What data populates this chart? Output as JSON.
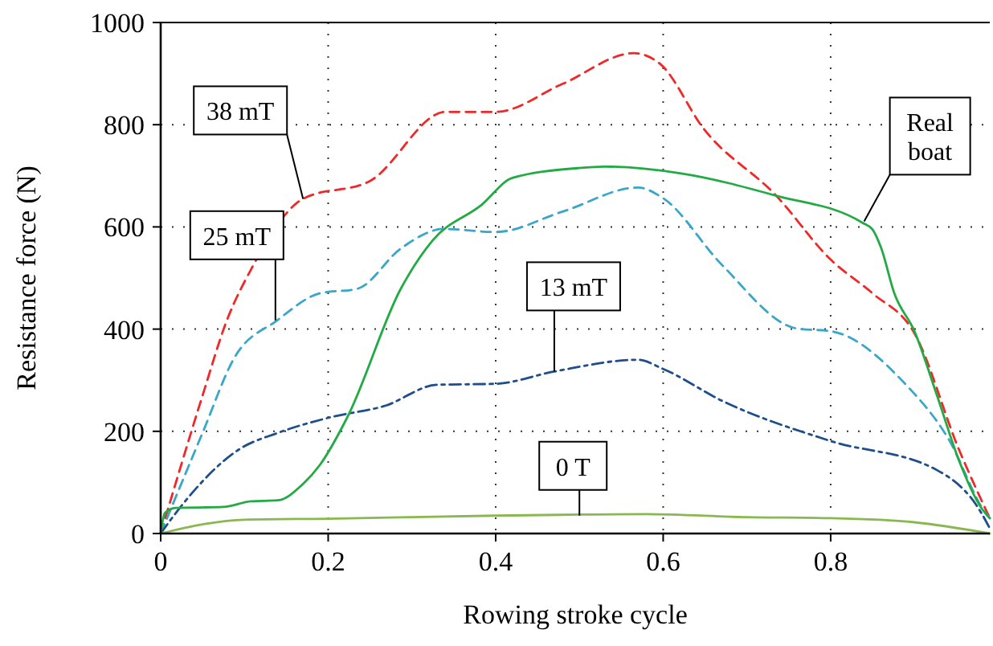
{
  "chart_data": {
    "type": "line",
    "xlabel": "Rowing stroke cycle",
    "ylabel": "Resistance force (N)",
    "xlim": [
      0,
      0.99
    ],
    "ylim": [
      0,
      1000
    ],
    "xticks": [
      0,
      0.2,
      0.4,
      0.6,
      0.8
    ],
    "yticks": [
      0,
      200,
      400,
      600,
      800,
      1000
    ],
    "grid": true,
    "series": [
      {
        "color": "#f02828",
        "line_style": "dashed",
        "x": [
          0,
          0.05,
          0.079,
          0.108,
          0.17,
          0.25,
          0.34,
          0.4,
          0.48,
          0.565,
          0.597,
          0.648,
          0.735,
          0.8,
          0.85,
          0.9,
          0.953,
          0.99
        ],
        "values": [
          0,
          270,
          417,
          517,
          655,
          690,
          825,
          825,
          880,
          940,
          918,
          793,
          661,
          536,
          470,
          392,
          165,
          30
        ]
      },
      {
        "color": "#3aa6c8",
        "line_style": "dashed",
        "x": [
          0,
          0.05,
          0.088,
          0.139,
          0.19,
          0.235,
          0.287,
          0.338,
          0.4,
          0.48,
          0.57,
          0.6,
          0.67,
          0.76,
          0.8,
          0.89,
          0.94,
          0.985,
          0.99
        ],
        "values": [
          0,
          197,
          344,
          417,
          470,
          479,
          558,
          596,
          590,
          630,
          677,
          656,
          526,
          401,
          396,
          291,
          187,
          40,
          30
        ]
      },
      {
        "color": "#1f4e8c",
        "line_style": "dashdot",
        "x": [
          0,
          0.018,
          0.095,
          0.14,
          0.204,
          0.268,
          0.33,
          0.4,
          0.47,
          0.57,
          0.6,
          0.67,
          0.8,
          0.927,
          0.98,
          0.99
        ],
        "values": [
          0,
          40,
          166,
          197,
          228,
          250,
          291,
          293,
          317,
          340,
          322,
          260,
          181,
          124,
          40,
          10
        ]
      },
      {
        "color": "#22aa44",
        "line_style": "solid",
        "x": [
          0,
          0.005,
          0.018,
          0.075,
          0.108,
          0.14,
          0.17,
          0.19,
          0.223,
          0.287,
          0.325,
          0.383,
          0.42,
          0.498,
          0.53,
          0.62,
          0.735,
          0.838,
          0.85,
          0.86,
          0.876,
          0.9,
          0.927,
          0.953,
          0.98,
          0.99
        ],
        "values": [
          0,
          40,
          50,
          52,
          63,
          65,
          97,
          134,
          228,
          480,
          574,
          643,
          696,
          715,
          718,
          705,
          661,
          608,
          595,
          560,
          470,
          396,
          270,
          144,
          50,
          30
        ]
      },
      {
        "color": "#8ab850",
        "line_style": "solid",
        "x": [
          0,
          0.05,
          0.1,
          0.2,
          0.4,
          0.5,
          0.58,
          0.7,
          0.8,
          0.9,
          0.99
        ],
        "values": [
          0,
          18,
          27,
          29,
          35,
          37,
          38,
          32,
          30,
          22,
          0
        ]
      }
    ],
    "annotations": [
      {
        "text": "38 mT",
        "x": 0.17,
        "y": 655
      },
      {
        "text": "25 mT",
        "x": 0.137,
        "y": 417
      },
      {
        "text": "13 mT",
        "x": 0.47,
        "y": 317
      },
      {
        "text": "0 T",
        "x": 0.5,
        "y": 35
      },
      {
        "text": "Real boat",
        "x": 0.84,
        "y": 611
      }
    ]
  }
}
